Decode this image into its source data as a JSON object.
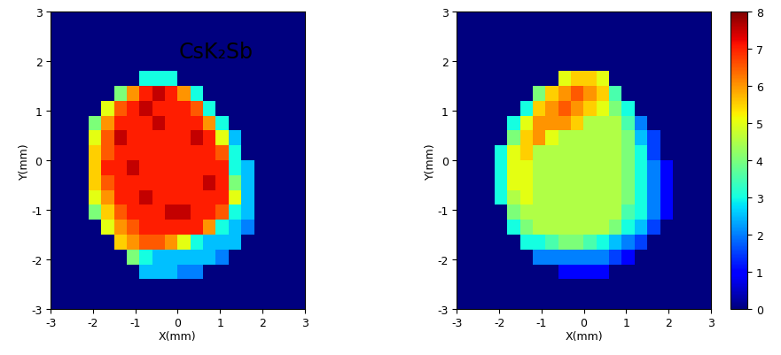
{
  "chart_data": [
    {
      "type": "heatmap",
      "annotation": "CsK₂Sb",
      "xlabel": "X(mm)",
      "ylabel": "Y(mm)",
      "xlim": [
        -3,
        3
      ],
      "ylim": [
        -3,
        3
      ],
      "xticks": [
        -3,
        -2,
        -1,
        0,
        1,
        2,
        3
      ],
      "yticks": [
        -3,
        -2,
        -1,
        0,
        1,
        2,
        3
      ],
      "color": "jet",
      "colorbar_range": [
        0,
        8
      ],
      "cells": [
        [
          0,
          0,
          0,
          0,
          0,
          0,
          0,
          0,
          0,
          0,
          0,
          0,
          0,
          0,
          0,
          0,
          0,
          0,
          0,
          0
        ],
        [
          0,
          0,
          0,
          0,
          0,
          0,
          0,
          0,
          0,
          0,
          0,
          0,
          0,
          0,
          0,
          0,
          0,
          0,
          0,
          0
        ],
        [
          0,
          0,
          0,
          0,
          0,
          0,
          0,
          0,
          0,
          0,
          0,
          0,
          0,
          0,
          0,
          0,
          0,
          0,
          0,
          0
        ],
        [
          0,
          0,
          0,
          0,
          0,
          0,
          0,
          0,
          0,
          0,
          0,
          0,
          0,
          0,
          0,
          0,
          0,
          0,
          0,
          0
        ],
        [
          0,
          0,
          0,
          0,
          0,
          0,
          0,
          3,
          3,
          3,
          0,
          0,
          0,
          0,
          0,
          0,
          0,
          0,
          0,
          0
        ],
        [
          0,
          0,
          0,
          0,
          0,
          4,
          6,
          7,
          7.5,
          7,
          6,
          3,
          0,
          0,
          0,
          0,
          0,
          0,
          0,
          0
        ],
        [
          0,
          0,
          0,
          0,
          5,
          6.5,
          7,
          7.5,
          7,
          7,
          7,
          6.5,
          3,
          0,
          0,
          0,
          0,
          0,
          0,
          0
        ],
        [
          0,
          0,
          0,
          4,
          6,
          7,
          7,
          7,
          7.5,
          7,
          7,
          7,
          6,
          3,
          0,
          0,
          0,
          0,
          0,
          0
        ],
        [
          0,
          0,
          0,
          5,
          6.5,
          7.5,
          7,
          7,
          7,
          7,
          7,
          7.5,
          7,
          5,
          2.5,
          0,
          0,
          0,
          0,
          0
        ],
        [
          0,
          0,
          0,
          5.5,
          6.5,
          7,
          7,
          7,
          7,
          7,
          7,
          7,
          7,
          6.5,
          3,
          0,
          0,
          0,
          0,
          0
        ],
        [
          0,
          0,
          0,
          5.5,
          7,
          7,
          7.5,
          7,
          7,
          7,
          7,
          7,
          7,
          7,
          3,
          2.5,
          0,
          0,
          0,
          0
        ],
        [
          0,
          0,
          0,
          5.5,
          6.5,
          7,
          7,
          7,
          7,
          7,
          7,
          7,
          7.5,
          7,
          4,
          2.5,
          0,
          0,
          0,
          0
        ],
        [
          0,
          0,
          0,
          5,
          6,
          7,
          7,
          7.5,
          7,
          7,
          7,
          7,
          7,
          7,
          5,
          2.5,
          0,
          0,
          0,
          0
        ],
        [
          0,
          0,
          0,
          4,
          5.5,
          6.5,
          7,
          7,
          7,
          7.5,
          7.5,
          7,
          7,
          6.5,
          3,
          2.5,
          0,
          0,
          0,
          0
        ],
        [
          0,
          0,
          0,
          0,
          5,
          6,
          6.5,
          7,
          7,
          7,
          7,
          7,
          6,
          3,
          2.5,
          2,
          0,
          0,
          0,
          0
        ],
        [
          0,
          0,
          0,
          0,
          0,
          5.5,
          6,
          6.5,
          6.5,
          6,
          5,
          3,
          2.5,
          2.5,
          2.5,
          0,
          0,
          0,
          0,
          0
        ],
        [
          0,
          0,
          0,
          0,
          0,
          0,
          4,
          3,
          2.5,
          2.5,
          2.5,
          2.5,
          2.5,
          2,
          0,
          0,
          0,
          0,
          0,
          0
        ],
        [
          0,
          0,
          0,
          0,
          0,
          0,
          0,
          2.5,
          2.5,
          2.5,
          2,
          2,
          0,
          0,
          0,
          0,
          0,
          0,
          0,
          0
        ],
        [
          0,
          0,
          0,
          0,
          0,
          0,
          0,
          0,
          0,
          0,
          0,
          0,
          0,
          0,
          0,
          0,
          0,
          0,
          0,
          0
        ],
        [
          0,
          0,
          0,
          0,
          0,
          0,
          0,
          0,
          0,
          0,
          0,
          0,
          0,
          0,
          0,
          0,
          0,
          0,
          0,
          0
        ]
      ]
    },
    {
      "type": "heatmap",
      "xlabel": "X(mm)",
      "ylabel": "Y(mm)",
      "xlim": [
        -3,
        3
      ],
      "ylim": [
        -3,
        3
      ],
      "xticks": [
        -3,
        -2,
        -1,
        0,
        1,
        2,
        3
      ],
      "yticks": [
        -3,
        -2,
        -1,
        0,
        1,
        2,
        3
      ],
      "color": "jet",
      "colorbar_range": [
        0,
        8
      ],
      "colorbar_ticks": [
        0,
        1,
        2,
        3,
        4,
        5,
        6,
        7,
        8
      ],
      "cells": [
        [
          0,
          0,
          0,
          0,
          0,
          0,
          0,
          0,
          0,
          0,
          0,
          0,
          0,
          0,
          0,
          0,
          0,
          0,
          0,
          0
        ],
        [
          0,
          0,
          0,
          0,
          0,
          0,
          0,
          0,
          0,
          0,
          0,
          0,
          0,
          0,
          0,
          0,
          0,
          0,
          0,
          0
        ],
        [
          0,
          0,
          0,
          0,
          0,
          0,
          0,
          0,
          0,
          0,
          0,
          0,
          0,
          0,
          0,
          0,
          0,
          0,
          0,
          0
        ],
        [
          0,
          0,
          0,
          0,
          0,
          0,
          0,
          0,
          0,
          0,
          0,
          0,
          0,
          0,
          0,
          0,
          0,
          0,
          0,
          0
        ],
        [
          0,
          0,
          0,
          0,
          0,
          0,
          0,
          0,
          5,
          5.5,
          5.5,
          5,
          0,
          0,
          0,
          0,
          0,
          0,
          0,
          0
        ],
        [
          0,
          0,
          0,
          0,
          0,
          0,
          4,
          5.5,
          6,
          6.5,
          6,
          5.5,
          3.5,
          0,
          0,
          0,
          0,
          0,
          0,
          0
        ],
        [
          0,
          0,
          0,
          0,
          0,
          3,
          5.5,
          6,
          6.5,
          6,
          5.5,
          5,
          4,
          3,
          0,
          0,
          0,
          0,
          0,
          0
        ],
        [
          0,
          0,
          0,
          0,
          3,
          5,
          6,
          6,
          6,
          5.5,
          4.5,
          4.5,
          4.5,
          3.5,
          2,
          0,
          0,
          0,
          0,
          0
        ],
        [
          0,
          0,
          0,
          0,
          4,
          5.5,
          6,
          5,
          4.5,
          4.5,
          4.5,
          4.5,
          4.5,
          4,
          2.5,
          1.5,
          0,
          0,
          0,
          0
        ],
        [
          0,
          0,
          0,
          3,
          5,
          5.5,
          4.5,
          4.5,
          4.5,
          4.5,
          4.5,
          4.5,
          4.5,
          4,
          3,
          1.5,
          0,
          0,
          0,
          0
        ],
        [
          0,
          0,
          0,
          3,
          5,
          5,
          4.5,
          4.5,
          4.5,
          4.5,
          4.5,
          4.5,
          4.5,
          4,
          3,
          2,
          1,
          0,
          0,
          0
        ],
        [
          0,
          0,
          0,
          3,
          5,
          5,
          4.5,
          4.5,
          4.5,
          4.5,
          4.5,
          4.5,
          4.5,
          4,
          3,
          2,
          1,
          0,
          0,
          0
        ],
        [
          0,
          0,
          0,
          3,
          4.5,
          5,
          4.5,
          4.5,
          4.5,
          4.5,
          4.5,
          4.5,
          4.5,
          4,
          3,
          2,
          1,
          0,
          0,
          0
        ],
        [
          0,
          0,
          0,
          0,
          4,
          4.5,
          4.5,
          4.5,
          4.5,
          4.5,
          4.5,
          4.5,
          4.5,
          3.5,
          3,
          2,
          1,
          0,
          0,
          0
        ],
        [
          0,
          0,
          0,
          0,
          3,
          4,
          4.5,
          4.5,
          4.5,
          4.5,
          4.5,
          4.5,
          4,
          3,
          2.5,
          1.5,
          0,
          0,
          0,
          0
        ],
        [
          0,
          0,
          0,
          0,
          0,
          3,
          3,
          3.5,
          4,
          4,
          3.5,
          3,
          2.5,
          2,
          1.5,
          0,
          0,
          0,
          0,
          0
        ],
        [
          0,
          0,
          0,
          0,
          0,
          0,
          2,
          2,
          2,
          2,
          2,
          2,
          1.5,
          1,
          0,
          0,
          0,
          0,
          0,
          0
        ],
        [
          0,
          0,
          0,
          0,
          0,
          0,
          0,
          0,
          1,
          1,
          1,
          1,
          0,
          0,
          0,
          0,
          0,
          0,
          0,
          0
        ],
        [
          0,
          0,
          0,
          0,
          0,
          0,
          0,
          0,
          0,
          0,
          0,
          0,
          0,
          0,
          0,
          0,
          0,
          0,
          0,
          0
        ],
        [
          0,
          0,
          0,
          0,
          0,
          0,
          0,
          0,
          0,
          0,
          0,
          0,
          0,
          0,
          0,
          0,
          0,
          0,
          0,
          0
        ]
      ]
    }
  ]
}
